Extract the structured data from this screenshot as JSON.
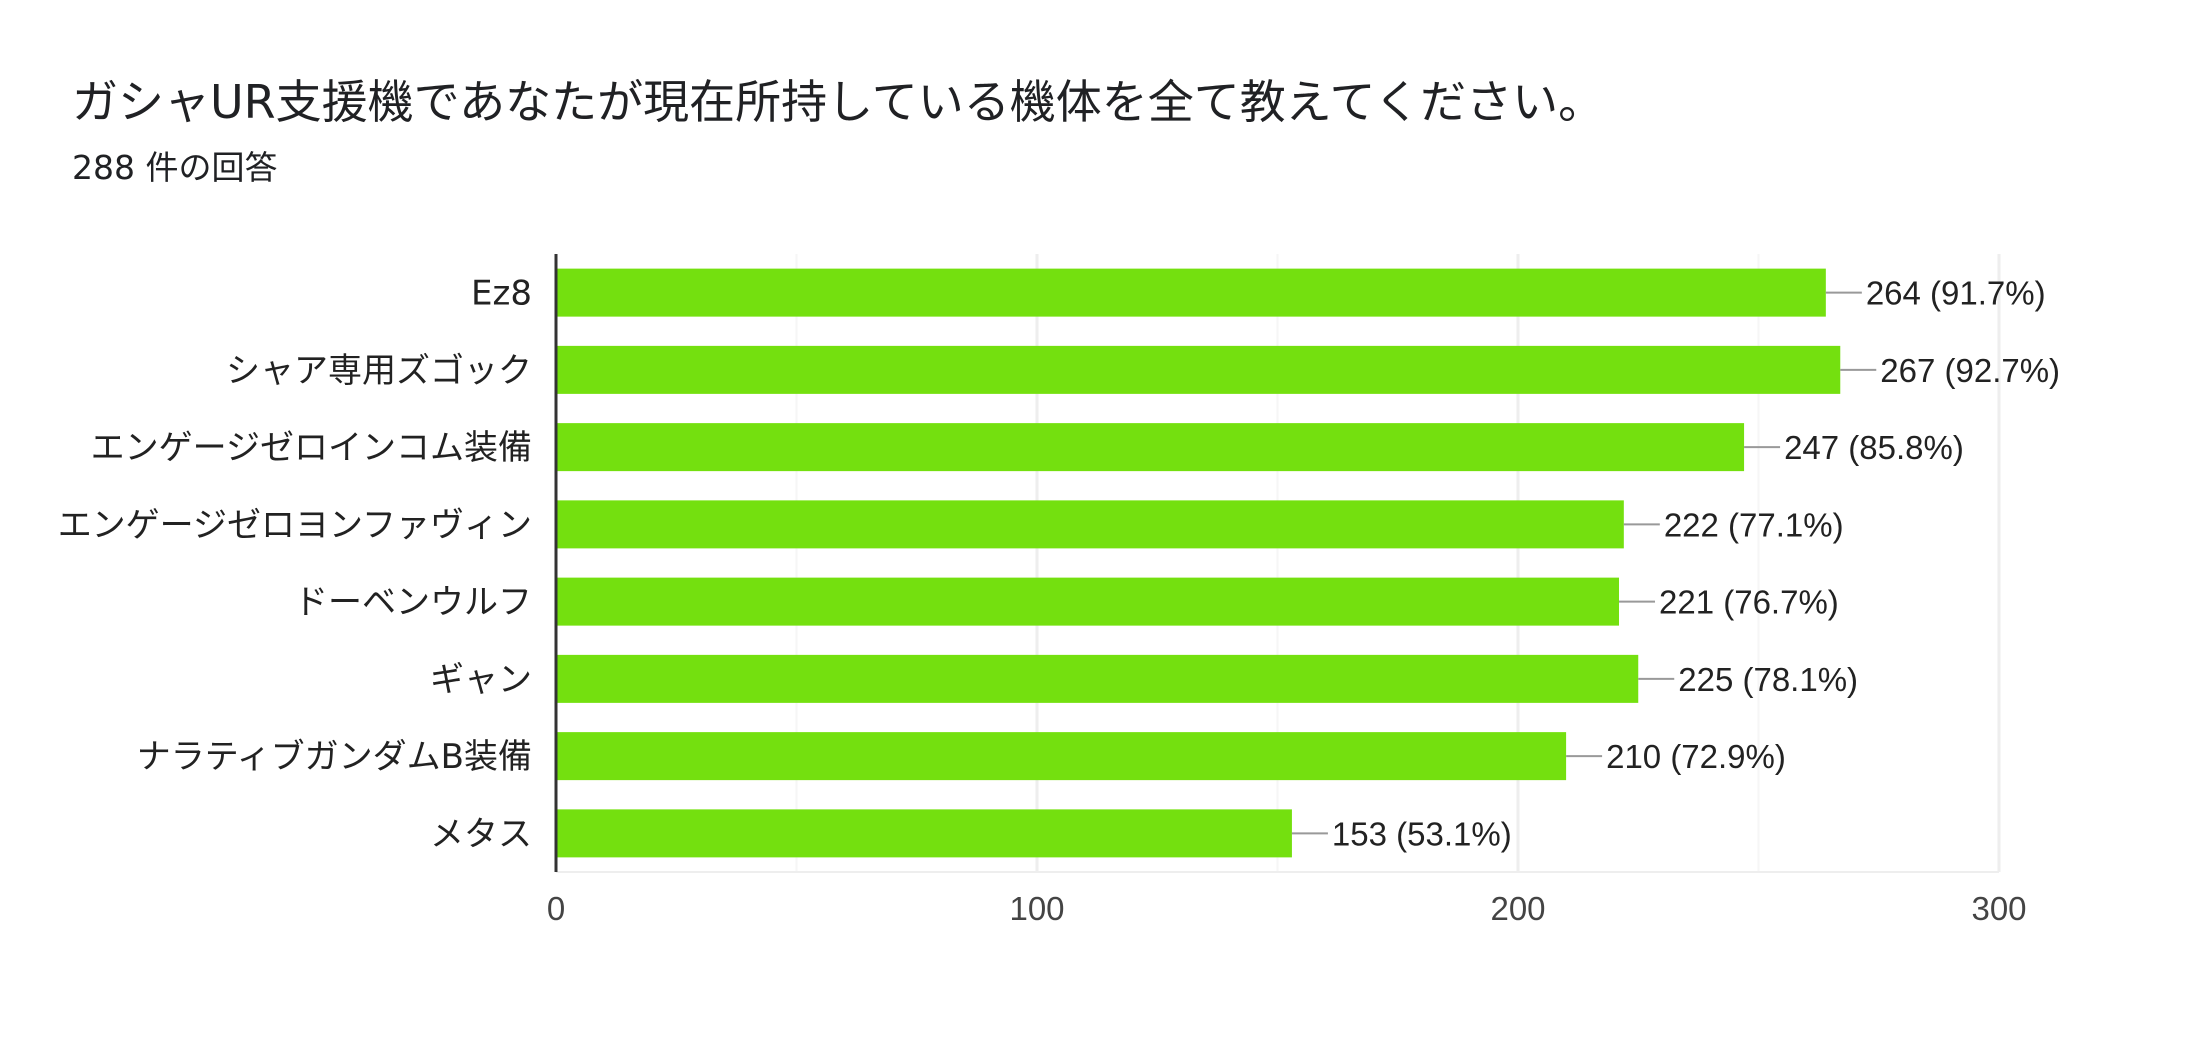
{
  "header": {
    "title": "ガシャUR支援機であなたが現在所持している機体を全て教えてください。",
    "subtitle": "288 件の回答"
  },
  "chart_data": {
    "type": "bar",
    "orientation": "horizontal",
    "categories": [
      "Ez8",
      "シャア専用ズゴック",
      "エンゲージゼロインコム装備",
      "エンゲージゼロヨンファヴィン",
      "ドーベンウルフ",
      "ギャン",
      "ナラティブガンダムB装備",
      "メタス"
    ],
    "values": [
      264,
      267,
      247,
      222,
      221,
      225,
      210,
      153
    ],
    "value_labels": [
      "264 (91.7%)",
      "267 (92.7%)",
      "247 (85.8%)",
      "222 (77.1%)",
      "221 (76.7%)",
      "225 (78.1%)",
      "210 (72.9%)",
      "153 (53.1%)"
    ],
    "xlim": [
      0,
      300
    ],
    "xticks": [
      0,
      100,
      200,
      300
    ],
    "grid": true,
    "bar_color": "#74e00f",
    "gridline_color": "#eeeeee",
    "leader_line_color": "#999999"
  }
}
